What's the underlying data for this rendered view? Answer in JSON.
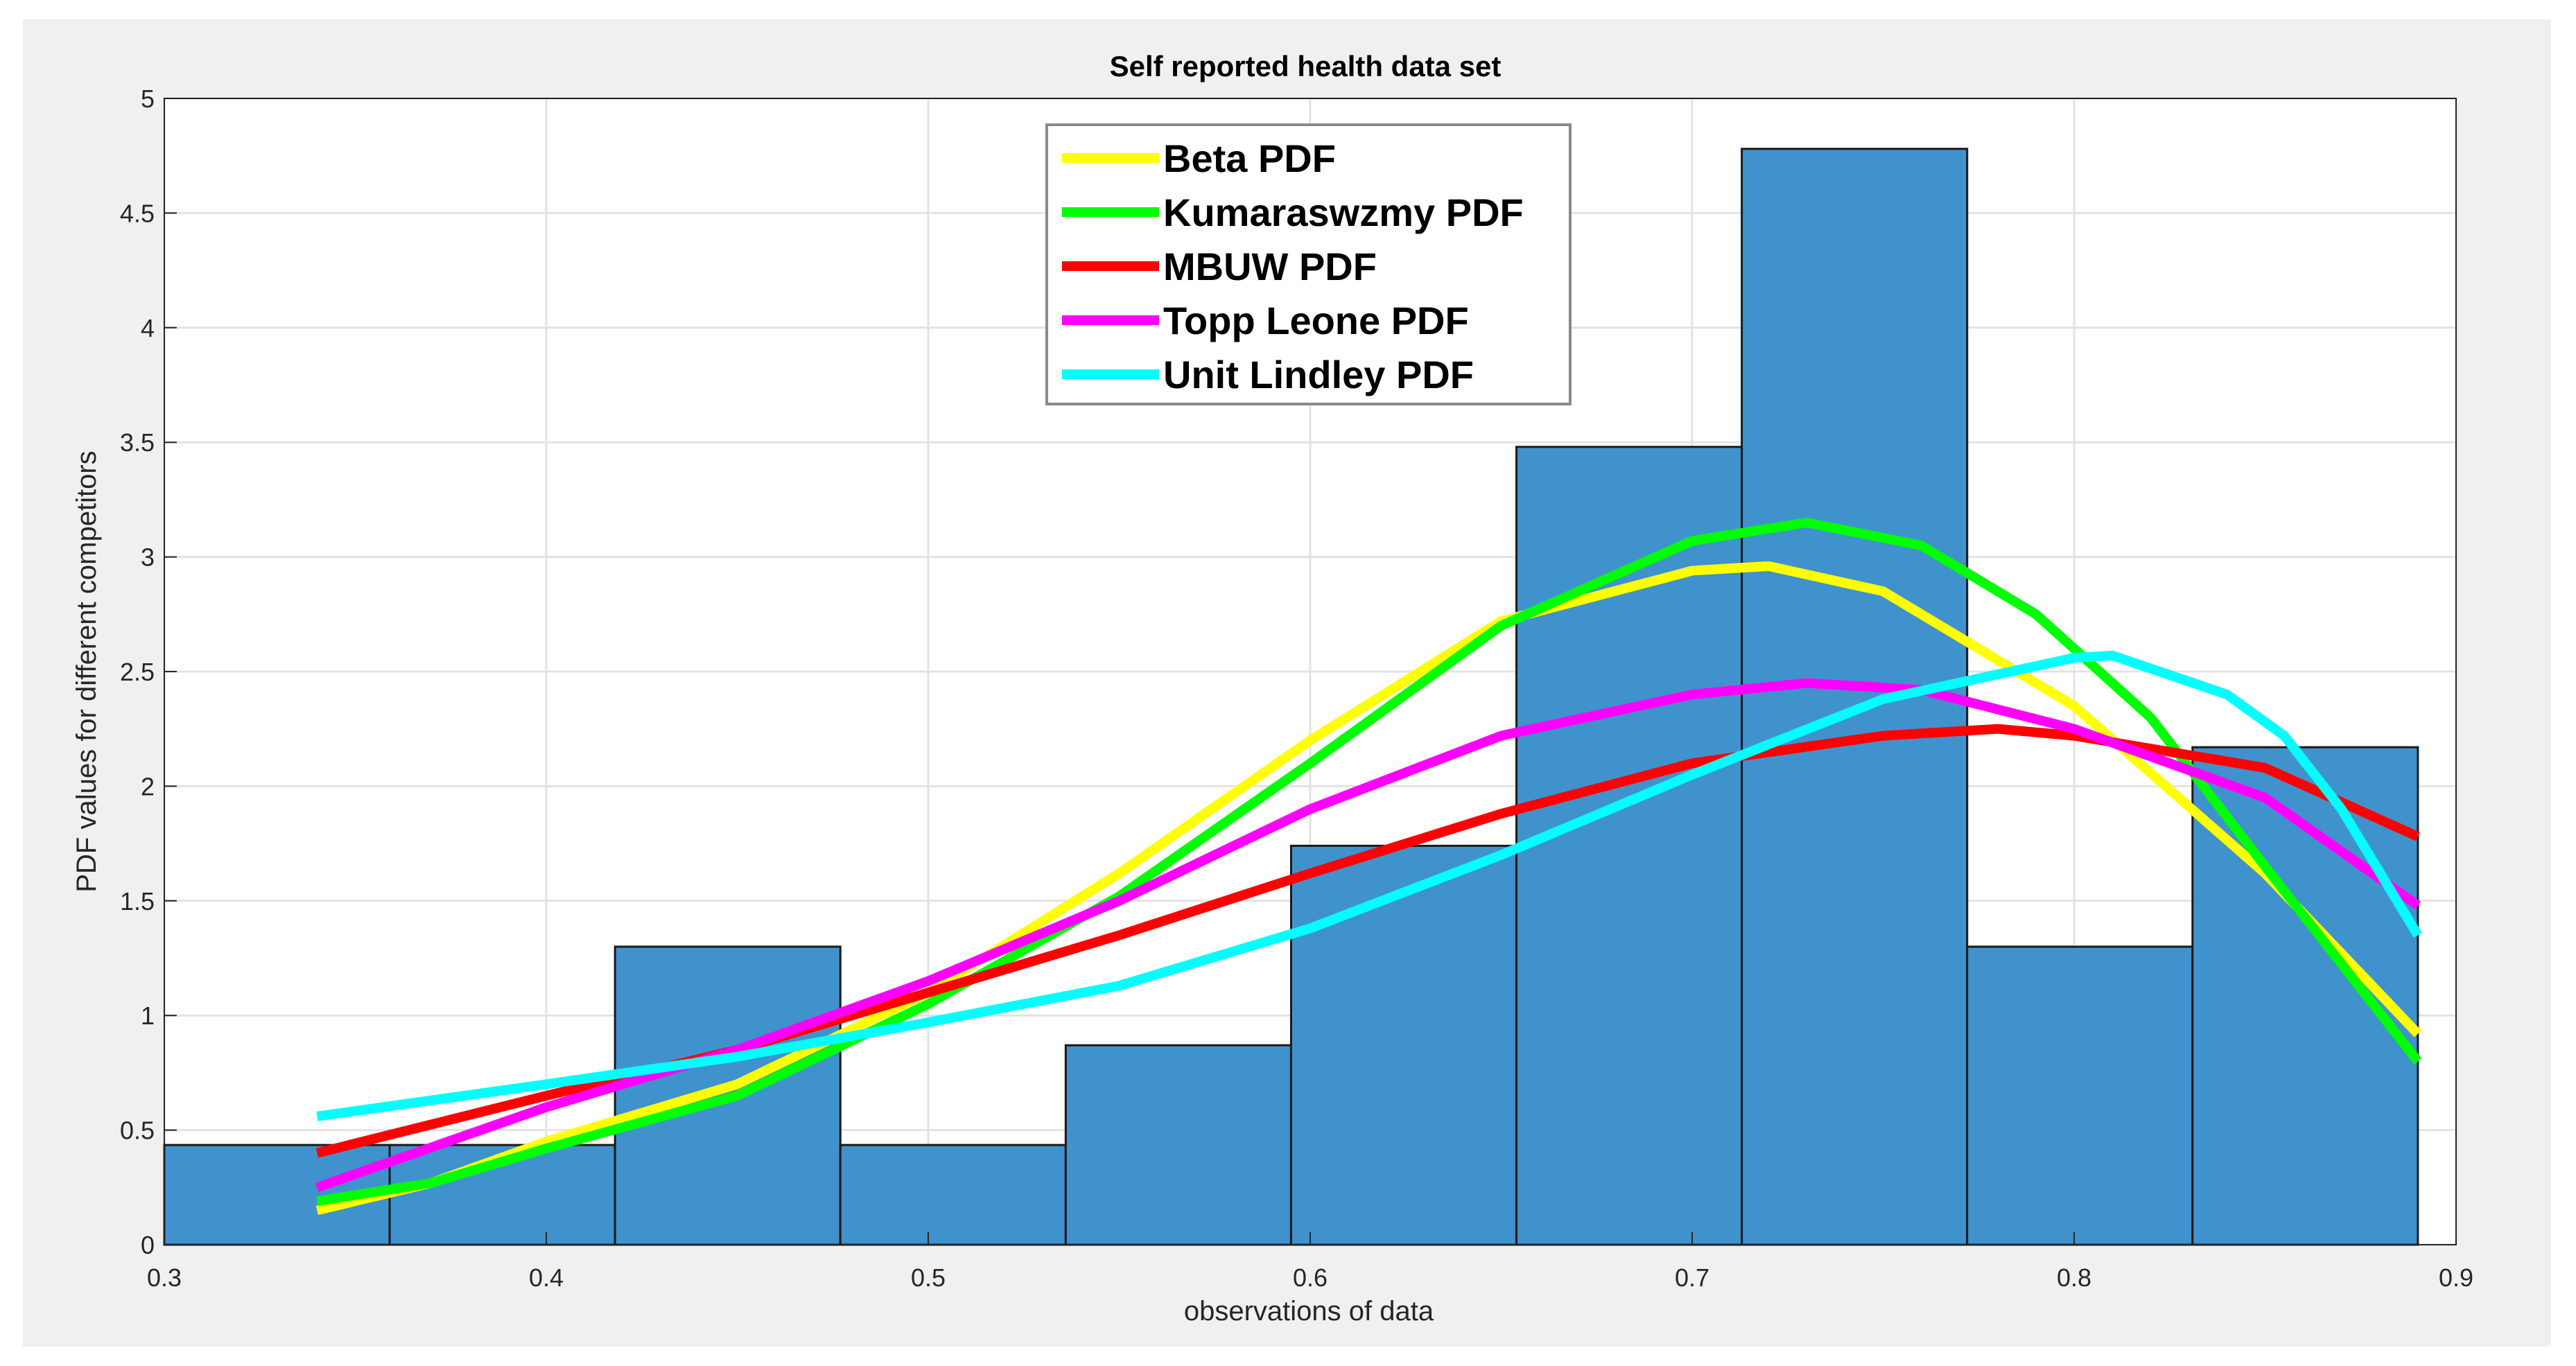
{
  "chart_data": {
    "type": "histogram-with-lines",
    "title": "Self reported health data set",
    "xlabel": "observations of  data",
    "ylabel": "PDF values for different competitors",
    "xlim": [
      0.3,
      0.9
    ],
    "ylim": [
      0,
      5
    ],
    "xticks": [
      "0.3",
      "0.4",
      "0.5",
      "0.6",
      "0.7",
      "0.8",
      "0.9"
    ],
    "yticks": [
      "0",
      "0.5",
      "1",
      "1.5",
      "2",
      "2.5",
      "3",
      "3.5",
      "4",
      "4.5",
      "5"
    ],
    "grid": true,
    "legend_position": "top-center",
    "histogram": {
      "color": "#4092cd",
      "bin_edges": [
        0.3,
        0.359,
        0.418,
        0.477,
        0.536,
        0.595,
        0.654,
        0.713,
        0.772,
        0.831,
        0.89
      ],
      "values": [
        0.435,
        0.435,
        1.3,
        0.435,
        0.87,
        1.74,
        3.48,
        4.78,
        1.3,
        2.17
      ]
    },
    "series": [
      {
        "name": "Beta PDF",
        "color": "#ffff00",
        "x": [
          0.34,
          0.37,
          0.4,
          0.45,
          0.5,
          0.55,
          0.6,
          0.65,
          0.7,
          0.72,
          0.75,
          0.8,
          0.85,
          0.89
        ],
        "y": [
          0.15,
          0.27,
          0.45,
          0.7,
          1.1,
          1.62,
          2.2,
          2.72,
          2.94,
          2.96,
          2.85,
          2.35,
          1.62,
          0.92
        ]
      },
      {
        "name": "Kumaraswzmy PDF",
        "color": "#00ff00",
        "x": [
          0.34,
          0.37,
          0.4,
          0.45,
          0.5,
          0.55,
          0.6,
          0.65,
          0.7,
          0.73,
          0.76,
          0.79,
          0.82,
          0.85,
          0.89
        ],
        "y": [
          0.19,
          0.27,
          0.42,
          0.65,
          1.05,
          1.52,
          2.1,
          2.7,
          3.07,
          3.15,
          3.05,
          2.75,
          2.3,
          1.65,
          0.8
        ]
      },
      {
        "name": "MBUW PDF",
        "color": "#ff0000",
        "x": [
          0.34,
          0.4,
          0.45,
          0.5,
          0.55,
          0.6,
          0.65,
          0.7,
          0.75,
          0.78,
          0.8,
          0.85,
          0.89
        ],
        "y": [
          0.4,
          0.65,
          0.85,
          1.1,
          1.35,
          1.62,
          1.88,
          2.1,
          2.22,
          2.25,
          2.22,
          2.08,
          1.78
        ]
      },
      {
        "name": "Topp Leone PDF",
        "color": "#ff00ff",
        "x": [
          0.34,
          0.4,
          0.45,
          0.5,
          0.55,
          0.6,
          0.65,
          0.7,
          0.73,
          0.76,
          0.8,
          0.85,
          0.89
        ],
        "y": [
          0.25,
          0.6,
          0.85,
          1.15,
          1.5,
          1.9,
          2.22,
          2.4,
          2.45,
          2.42,
          2.25,
          1.95,
          1.48
        ]
      },
      {
        "name": "Unit Lindley PDF",
        "color": "#00ffff",
        "x": [
          0.34,
          0.4,
          0.45,
          0.5,
          0.55,
          0.6,
          0.65,
          0.7,
          0.75,
          0.8,
          0.81,
          0.84,
          0.855,
          0.87,
          0.89
        ],
        "y": [
          0.56,
          0.7,
          0.82,
          0.97,
          1.13,
          1.38,
          1.7,
          2.05,
          2.38,
          2.56,
          2.57,
          2.4,
          2.22,
          1.9,
          1.35
        ]
      }
    ]
  }
}
